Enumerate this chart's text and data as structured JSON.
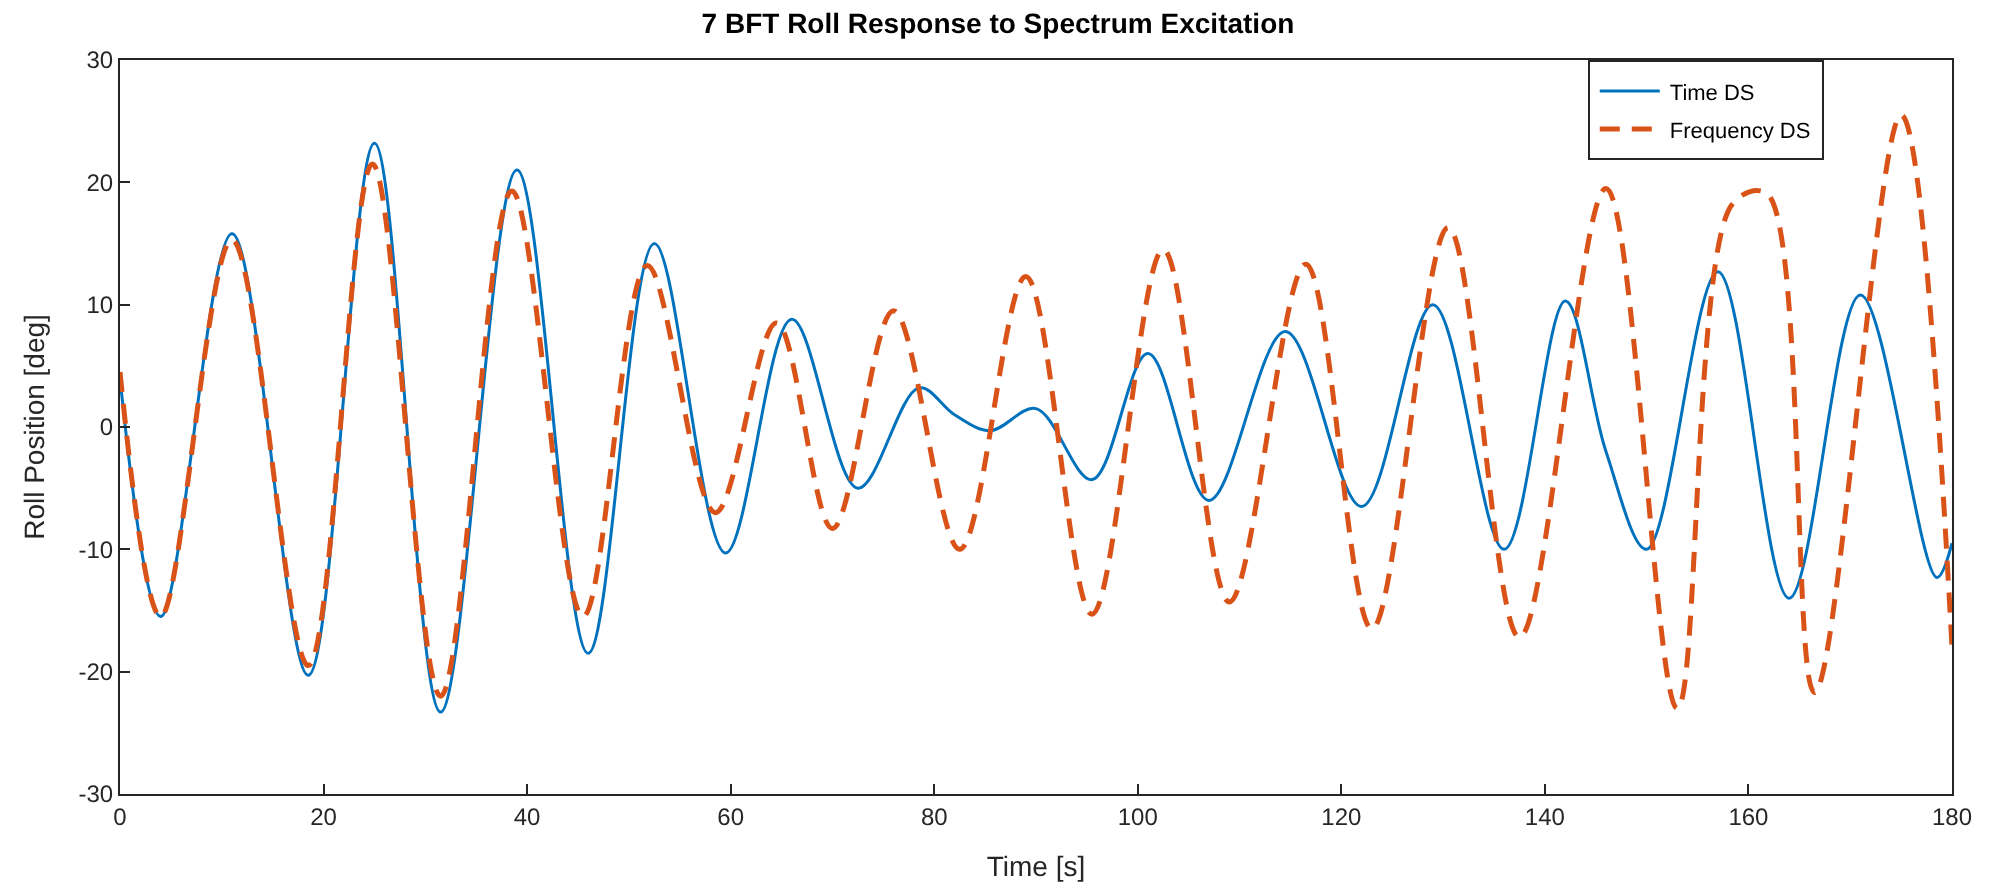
{
  "chart_data": {
    "type": "line",
    "title": "7 BFT Roll Response to Spectrum Excitation",
    "xlabel": "Time [s]",
    "ylabel": "Roll Position [deg]",
    "xlim": [
      0,
      180
    ],
    "xticks": [
      0,
      20,
      40,
      60,
      80,
      100,
      120,
      140,
      160,
      180
    ],
    "ylim": [
      -30,
      30
    ],
    "yticks": [
      -30,
      -20,
      -10,
      0,
      10,
      20,
      30
    ],
    "grid": false,
    "legend": "top right",
    "marker": "none",
    "series": [
      {
        "name": "Time DS",
        "color": "#0072bd",
        "line_style": "solid",
        "x": [
          0,
          4,
          11,
          18.5,
          25,
          31.5,
          39,
          46,
          52.5,
          59.5,
          66,
          72.5,
          78.5,
          82,
          85.5,
          90,
          95.5,
          101,
          107,
          114.5,
          122,
          129,
          136,
          142,
          146,
          150,
          157,
          164,
          171,
          178.5,
          180
        ],
        "values": [
          4,
          -15.5,
          15.8,
          -20.3,
          23.2,
          -23.3,
          21,
          -18.5,
          15,
          -10.3,
          8.8,
          -5,
          3.2,
          1,
          -0.3,
          1.5,
          -4.3,
          6,
          -6,
          7.8,
          -6.5,
          10,
          -10,
          10.3,
          -2,
          -10,
          12.7,
          -14,
          10.8,
          -12.3,
          -9.5
        ]
      },
      {
        "name": "Frequency DS",
        "color": "#d95319",
        "line_style": "dashed",
        "x": [
          0,
          4,
          11,
          18.5,
          24.8,
          31.5,
          38.5,
          45.5,
          51.8,
          58.5,
          64.5,
          70,
          76,
          82.5,
          89,
          95.5,
          102.5,
          109,
          116.5,
          123,
          130.5,
          137.5,
          146,
          153,
          158.4,
          161.8,
          166.5,
          175,
          180
        ],
        "values": [
          4.5,
          -15.5,
          15.3,
          -19.5,
          21.5,
          -22,
          19.3,
          -15.5,
          13.2,
          -7,
          8.5,
          -8.3,
          9.5,
          -10,
          12.3,
          -15.3,
          14.5,
          -14.3,
          13.3,
          -16.5,
          16.3,
          -17.2,
          19.5,
          -23,
          18.2,
          19.1,
          -21.7,
          25.5,
          -18
        ]
      }
    ]
  }
}
